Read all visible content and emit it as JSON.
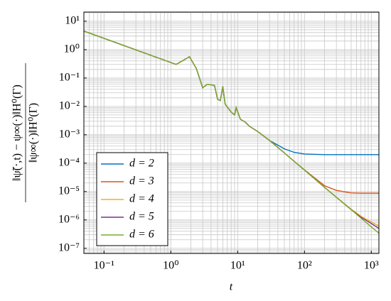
{
  "chart_data": {
    "type": "line",
    "xlabel": "t",
    "ylabel_numerator": "‖ψ̃(·,t) − ψ∞(·)‖H⁰(Γ)",
    "ylabel_denominator": "‖ψ∞(·)‖H⁰(Γ)",
    "x": [
      0.05,
      1.2,
      1.9,
      2.4,
      3,
      3.5,
      4.5,
      5,
      5.5,
      6,
      6.5,
      8,
      9,
      9.5,
      11,
      13,
      15,
      20,
      30,
      50,
      70,
      100,
      200,
      300,
      500,
      700,
      1000,
      1300
    ],
    "series": [
      {
        "name": "d = 2",
        "color": "#0072bd",
        "values": [
          4.5,
          0.3,
          0.56,
          0.22,
          0.045,
          0.06,
          0.055,
          0.018,
          0.016,
          0.05,
          0.012,
          0.0063,
          0.005,
          0.009,
          0.0035,
          0.0028,
          0.002,
          0.0013,
          0.00063,
          0.00032,
          0.00024,
          0.00021,
          0.0002,
          0.0002,
          0.0002,
          0.0002,
          0.0002,
          0.0002
        ]
      },
      {
        "name": "d = 3",
        "color": "#d95319",
        "values": [
          4.5,
          0.3,
          0.56,
          0.22,
          0.045,
          0.06,
          0.055,
          0.018,
          0.016,
          0.05,
          0.012,
          0.0063,
          0.005,
          0.009,
          0.0035,
          0.0028,
          0.002,
          0.0013,
          0.00063,
          0.00023,
          0.000116,
          5.8e-05,
          1.6e-05,
          1.1e-05,
          9e-06,
          8.8e-06,
          8.8e-06,
          8.8e-06
        ]
      },
      {
        "name": "d = 4",
        "color": "#edb120",
        "values": [
          4.5,
          0.3,
          0.56,
          0.22,
          0.045,
          0.06,
          0.055,
          0.018,
          0.016,
          0.05,
          0.012,
          0.0063,
          0.005,
          0.009,
          0.0035,
          0.0028,
          0.002,
          0.0013,
          0.00063,
          0.00023,
          0.000116,
          5.7e-05,
          1.4e-05,
          6.3e-06,
          2.4e-06,
          1.35e-06,
          8.5e-07,
          6e-07
        ]
      },
      {
        "name": "d = 5",
        "color": "#7e2f8e",
        "values": [
          4.5,
          0.3,
          0.56,
          0.22,
          0.045,
          0.06,
          0.055,
          0.018,
          0.016,
          0.05,
          0.012,
          0.0063,
          0.005,
          0.009,
          0.0035,
          0.0028,
          0.002,
          0.0013,
          0.00063,
          0.00023,
          0.000116,
          5.7e-05,
          1.4e-05,
          6.3e-06,
          2.3e-06,
          1.25e-06,
          7.5e-07,
          5e-07
        ]
      },
      {
        "name": "d = 6",
        "color": "#77ac30",
        "values": [
          4.5,
          0.3,
          0.56,
          0.22,
          0.045,
          0.06,
          0.055,
          0.018,
          0.016,
          0.05,
          0.012,
          0.0063,
          0.005,
          0.009,
          0.0035,
          0.0028,
          0.002,
          0.0013,
          0.00063,
          0.00023,
          0.000116,
          5.7e-05,
          1.4e-05,
          6.3e-06,
          2.3e-06,
          1.16e-06,
          5.7e-07,
          3.4e-07
        ]
      }
    ],
    "xlog": true,
    "ylog": true,
    "xlim": [
      0.05,
      1300
    ],
    "xticks": [
      {
        "value": 0.1,
        "label": "10⁻¹"
      },
      {
        "value": 1,
        "label": "10⁰"
      },
      {
        "value": 10,
        "label": "10¹"
      },
      {
        "value": 100,
        "label": "10²"
      },
      {
        "value": 1000,
        "label": "10³"
      }
    ],
    "ylim": [
      6.6e-08,
      21
    ],
    "yticks": [
      {
        "value": 1e-07,
        "label": "10⁻⁷"
      },
      {
        "value": 1e-06,
        "label": "10⁻⁶"
      },
      {
        "value": 1e-05,
        "label": "10⁻⁵"
      },
      {
        "value": 0.0001,
        "label": "10⁻⁴"
      },
      {
        "value": 0.001,
        "label": "10⁻³"
      },
      {
        "value": 0.01,
        "label": "10⁻²"
      },
      {
        "value": 0.1,
        "label": "10⁻¹"
      },
      {
        "value": 1,
        "label": "10⁰"
      },
      {
        "value": 10,
        "label": "10¹"
      }
    ],
    "grid": true,
    "minor_grid": true,
    "legend": "lower left"
  }
}
